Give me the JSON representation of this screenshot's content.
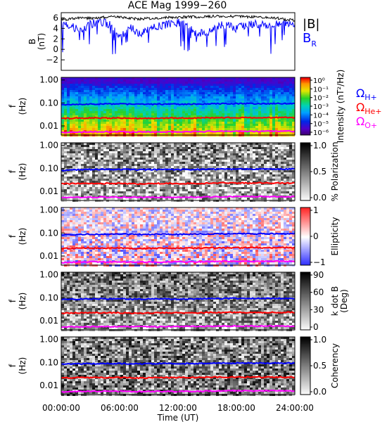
{
  "title": "ACE Mag 1999−260",
  "xlabel": "Time (UT)",
  "x_ticks": [
    "00:00:00",
    "06:00:00",
    "12:00:00",
    "18:00:00",
    "24:00:00"
  ],
  "x_range_hours": [
    0,
    24
  ],
  "colors": {
    "total": "#000000",
    "br": "#0000ff",
    "h_plus": "#0000ff",
    "he_plus": "#ff0000",
    "o_plus": "#ff00ff"
  },
  "chart_data": [
    {
      "type": "line",
      "panel": "field",
      "ylabel_main": "B",
      "ylabel_unit": "(nT)",
      "ylim": [
        -4,
        7
      ],
      "y_ticks": [
        "6",
        "4",
        "2",
        "0",
        "−2"
      ],
      "legend": {
        "total": "|B|",
        "br_main": "B",
        "br_sub": "R"
      },
      "x_hours": [
        0,
        1,
        2,
        3,
        4,
        5,
        6,
        7,
        8,
        9,
        10,
        11,
        12,
        13,
        14,
        15,
        16,
        17,
        18,
        19,
        20,
        21,
        22,
        23,
        24
      ],
      "series": [
        {
          "name": "|B|",
          "values": [
            5.6,
            5.8,
            6.0,
            5.9,
            6.1,
            6.2,
            6.2,
            5.9,
            5.8,
            5.9,
            6.0,
            6.1,
            6.1,
            6.2,
            6.2,
            6.3,
            6.3,
            6.3,
            6.3,
            6.2,
            6.2,
            6.1,
            6.0,
            5.7,
            5.6
          ]
        },
        {
          "name": "B_R",
          "values": [
            5.2,
            4.5,
            3.6,
            4.8,
            5.3,
            4.8,
            2.1,
            4.4,
            3.0,
            3.7,
            4.5,
            4.8,
            5.1,
            4.6,
            2.7,
            3.6,
            4.4,
            4.7,
            4.0,
            4.8,
            5.0,
            4.5,
            4.7,
            4.8,
            4.9
          ]
        }
      ]
    },
    {
      "type": "heatmap",
      "panel": "intensity",
      "ylabel_main": "f",
      "ylabel_unit": "(Hz)",
      "y_scale": "log",
      "ylim": [
        0.004,
        1.0
      ],
      "y_ticks": [
        "1.00",
        "0.10",
        "0.01"
      ],
      "colorbar_label": "Intensity (nT²/Hz)",
      "colorbar_ticks": [
        "10⁰",
        "10⁻¹",
        "10⁻²",
        "10⁻³",
        "10⁻⁴",
        "10⁻⁵",
        "10⁻⁶"
      ],
      "colorbar_range": [
        1e-06,
        1
      ],
      "curve_labels": [
        {
          "main": "Ω",
          "sub": "H+"
        },
        {
          "main": "Ω",
          "sub": "He+"
        },
        {
          "main": "Ω",
          "sub": "O+"
        }
      ]
    },
    {
      "type": "heatmap",
      "panel": "polarization",
      "ylabel_main": "f",
      "ylabel_unit": "(Hz)",
      "y_scale": "log",
      "y_ticks": [
        "1.00",
        "0.10",
        "0.01"
      ],
      "colorbar_label": "% Polarization",
      "colorbar_ticks": [
        "1.0",
        "0.5",
        "0.0"
      ],
      "colorbar_range": [
        0,
        1
      ]
    },
    {
      "type": "heatmap",
      "panel": "ellipticity",
      "ylabel_main": "f",
      "ylabel_unit": "(Hz)",
      "y_scale": "log",
      "y_ticks": [
        "1.00",
        "0.10",
        "0.01"
      ],
      "colorbar_label": "Ellipticity",
      "colorbar_ticks": [
        "1",
        "0",
        "−1"
      ],
      "colorbar_range": [
        -1,
        1
      ]
    },
    {
      "type": "heatmap",
      "panel": "kdotb",
      "ylabel_main": "f",
      "ylabel_unit": "(Hz)",
      "y_scale": "log",
      "y_ticks": [
        "1.00",
        "0.10",
        "0.01"
      ],
      "colorbar_label": "k dot B",
      "colorbar_unit": "(Deg)",
      "colorbar_ticks": [
        "90",
        "60",
        "30",
        "0"
      ],
      "colorbar_range": [
        0,
        90
      ]
    },
    {
      "type": "heatmap",
      "panel": "coherency",
      "ylabel_main": "f",
      "ylabel_unit": "(Hz)",
      "y_scale": "log",
      "y_ticks": [
        "1.00",
        "0.10",
        "0.01"
      ],
      "colorbar_label": "Coherency",
      "colorbar_ticks": [
        "1.0",
        "0.5",
        "0.0"
      ],
      "colorbar_range": [
        0,
        1
      ]
    }
  ],
  "gyrofrequency_curves": {
    "x_hours": [
      0,
      2,
      4,
      6,
      8,
      10,
      12,
      14,
      16,
      18,
      20,
      22,
      24
    ],
    "h_plus_hz": [
      0.083,
      0.088,
      0.09,
      0.09,
      0.087,
      0.089,
      0.088,
      0.09,
      0.092,
      0.094,
      0.093,
      0.094,
      0.093
    ],
    "he_plus_hz": [
      0.021,
      0.022,
      0.022,
      0.022,
      0.021,
      0.022,
      0.022,
      0.022,
      0.023,
      0.023,
      0.023,
      0.023,
      0.023
    ],
    "o_plus_hz": [
      0.0052,
      0.0055,
      0.0056,
      0.0056,
      0.0054,
      0.0055,
      0.0055,
      0.0056,
      0.0058,
      0.0059,
      0.0058,
      0.0059,
      0.0058
    ]
  }
}
